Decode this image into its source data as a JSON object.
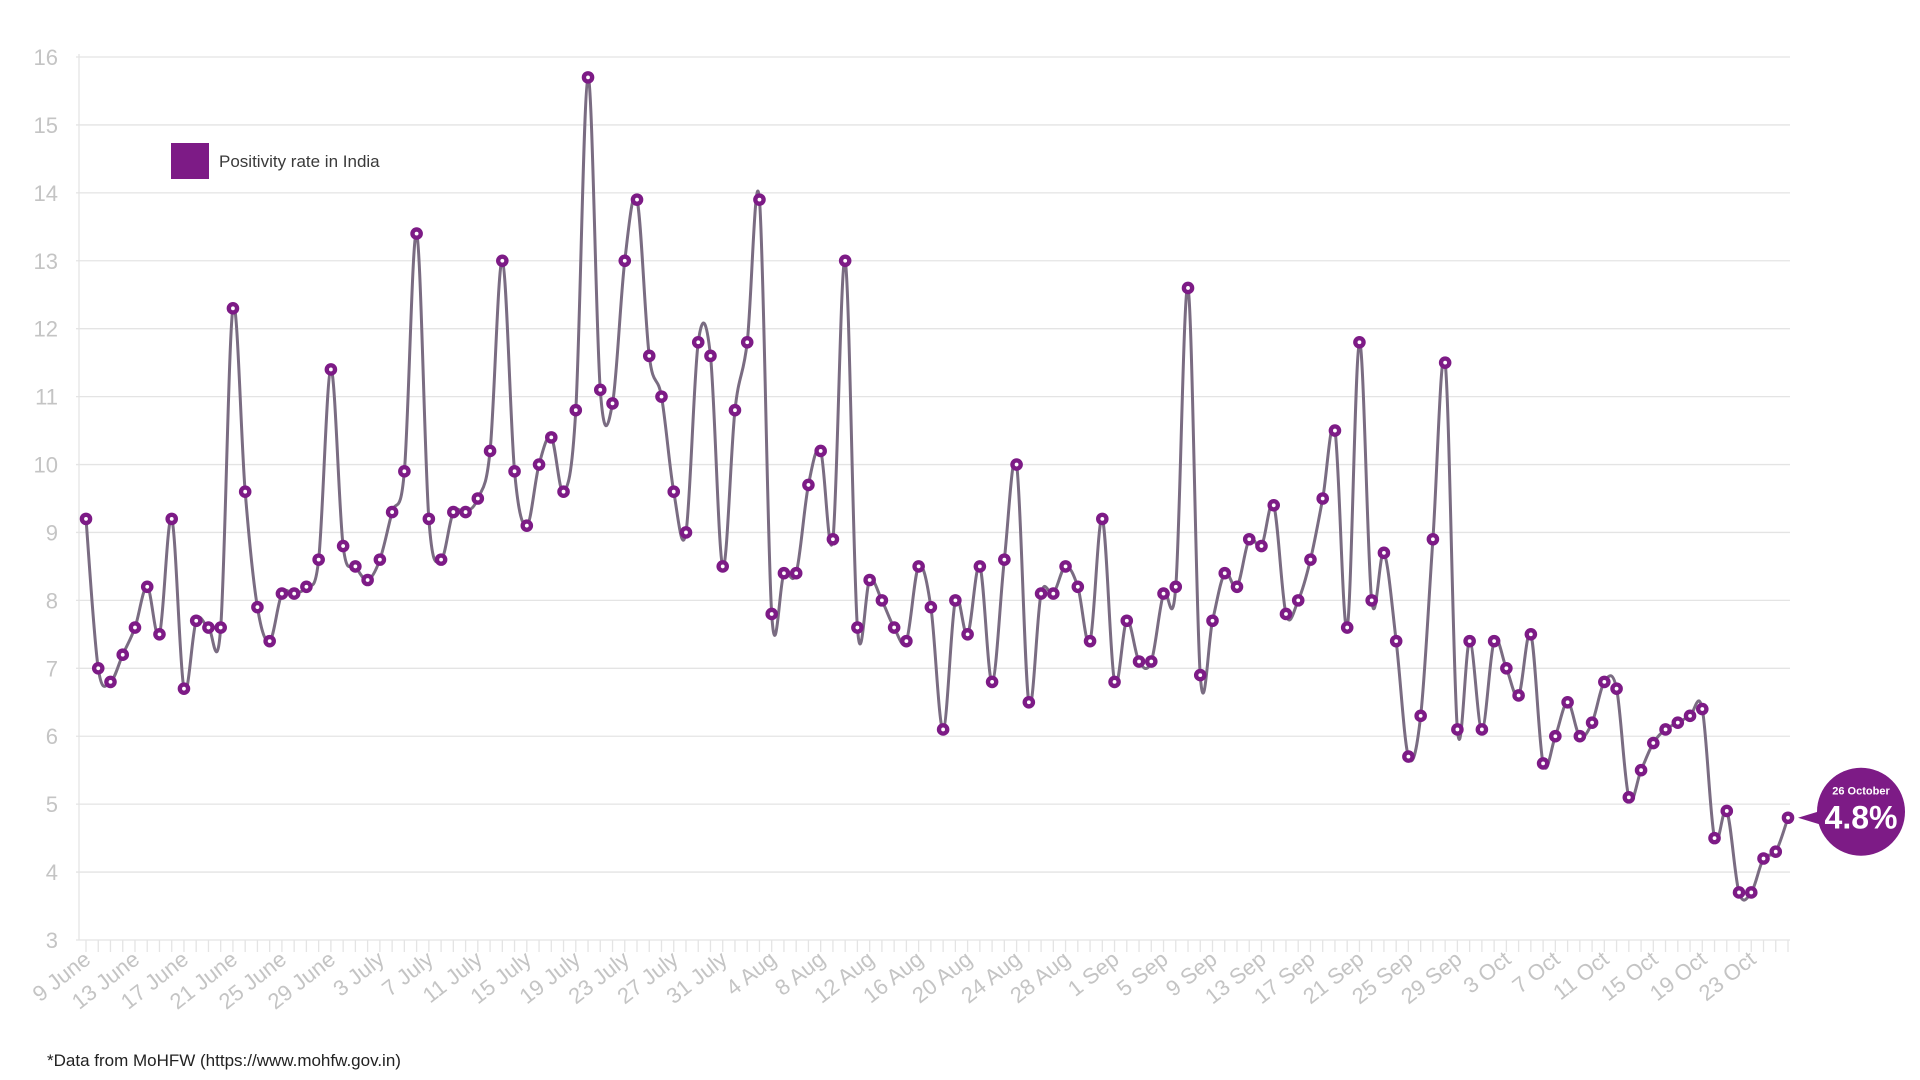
{
  "chart_data": {
    "type": "line",
    "legend": {
      "label": "Positivity rate in India",
      "placement": "top-left"
    },
    "footnote": "*Data from MoHFW (https://www.mohfw.gov.in)",
    "ylim": [
      3,
      16
    ],
    "yticks": [
      3,
      4,
      5,
      6,
      7,
      8,
      9,
      10,
      11,
      12,
      13,
      14,
      15,
      16
    ],
    "grid": true,
    "colors": {
      "line": "#7a6c82",
      "marker": "#7d1b86",
      "marker_center": "#ffffff",
      "grid": "#e4e4e4",
      "tick_label": "#c4c4c4"
    },
    "x_tick_labels": [
      "9 June",
      "13 June",
      "17 June",
      "21 June",
      "25 June",
      "29 June",
      "3 July",
      "7 July",
      "11 July",
      "15 July",
      "19 July",
      "23 July",
      "27 July",
      "31 July",
      "4 Aug",
      "8 Aug",
      "12 Aug",
      "16 Aug",
      "20 Aug",
      "24 Aug",
      "28 Aug",
      "1 Sep",
      "5 Sep",
      "9 Sep",
      "13 Sep",
      "17 Sep",
      "21 Sep",
      "25 Sep",
      "29 Sep",
      "3 Oct",
      "7 Oct",
      "11 Oct",
      "15 Oct",
      "19 Oct",
      "23 Oct"
    ],
    "x_tick_every": 4,
    "series": [
      {
        "name": "Positivity rate in India",
        "values": [
          9.2,
          7.0,
          6.8,
          7.2,
          7.6,
          8.2,
          7.5,
          9.2,
          6.7,
          7.7,
          7.6,
          7.6,
          12.3,
          9.6,
          7.9,
          7.4,
          8.1,
          8.1,
          8.2,
          8.6,
          11.4,
          8.8,
          8.5,
          8.3,
          8.6,
          9.3,
          9.9,
          13.4,
          9.2,
          8.6,
          9.3,
          9.3,
          9.5,
          10.2,
          13.0,
          9.9,
          9.1,
          10.0,
          10.4,
          9.6,
          10.8,
          15.7,
          11.1,
          10.9,
          13.0,
          13.9,
          11.6,
          11.0,
          9.6,
          9.0,
          11.8,
          11.6,
          8.5,
          10.8,
          11.8,
          13.9,
          7.8,
          8.4,
          8.4,
          9.7,
          10.2,
          8.9,
          13.0,
          7.6,
          8.3,
          8.0,
          7.6,
          7.4,
          8.5,
          7.9,
          6.1,
          8.0,
          7.5,
          8.5,
          6.8,
          8.6,
          10.0,
          6.5,
          8.1,
          8.1,
          8.5,
          8.2,
          7.4,
          9.2,
          6.8,
          7.7,
          7.1,
          7.1,
          8.1,
          8.2,
          12.6,
          6.9,
          7.7,
          8.4,
          8.2,
          8.9,
          8.8,
          9.4,
          7.8,
          8.0,
          8.6,
          9.5,
          10.5,
          7.6,
          11.8,
          8.0,
          8.7,
          7.4,
          5.7,
          6.3,
          8.9,
          11.5,
          6.1,
          7.4,
          6.1,
          7.4,
          7.0,
          6.6,
          7.5,
          5.6,
          6.0,
          6.5,
          6.0,
          6.2,
          6.8,
          6.7,
          5.1,
          5.5,
          5.9,
          6.1,
          6.2,
          6.3,
          6.4,
          4.5,
          4.9,
          3.7,
          3.7,
          4.2,
          4.3,
          4.8
        ]
      }
    ],
    "callout": {
      "date": "26 October",
      "value": "4.8%"
    }
  }
}
